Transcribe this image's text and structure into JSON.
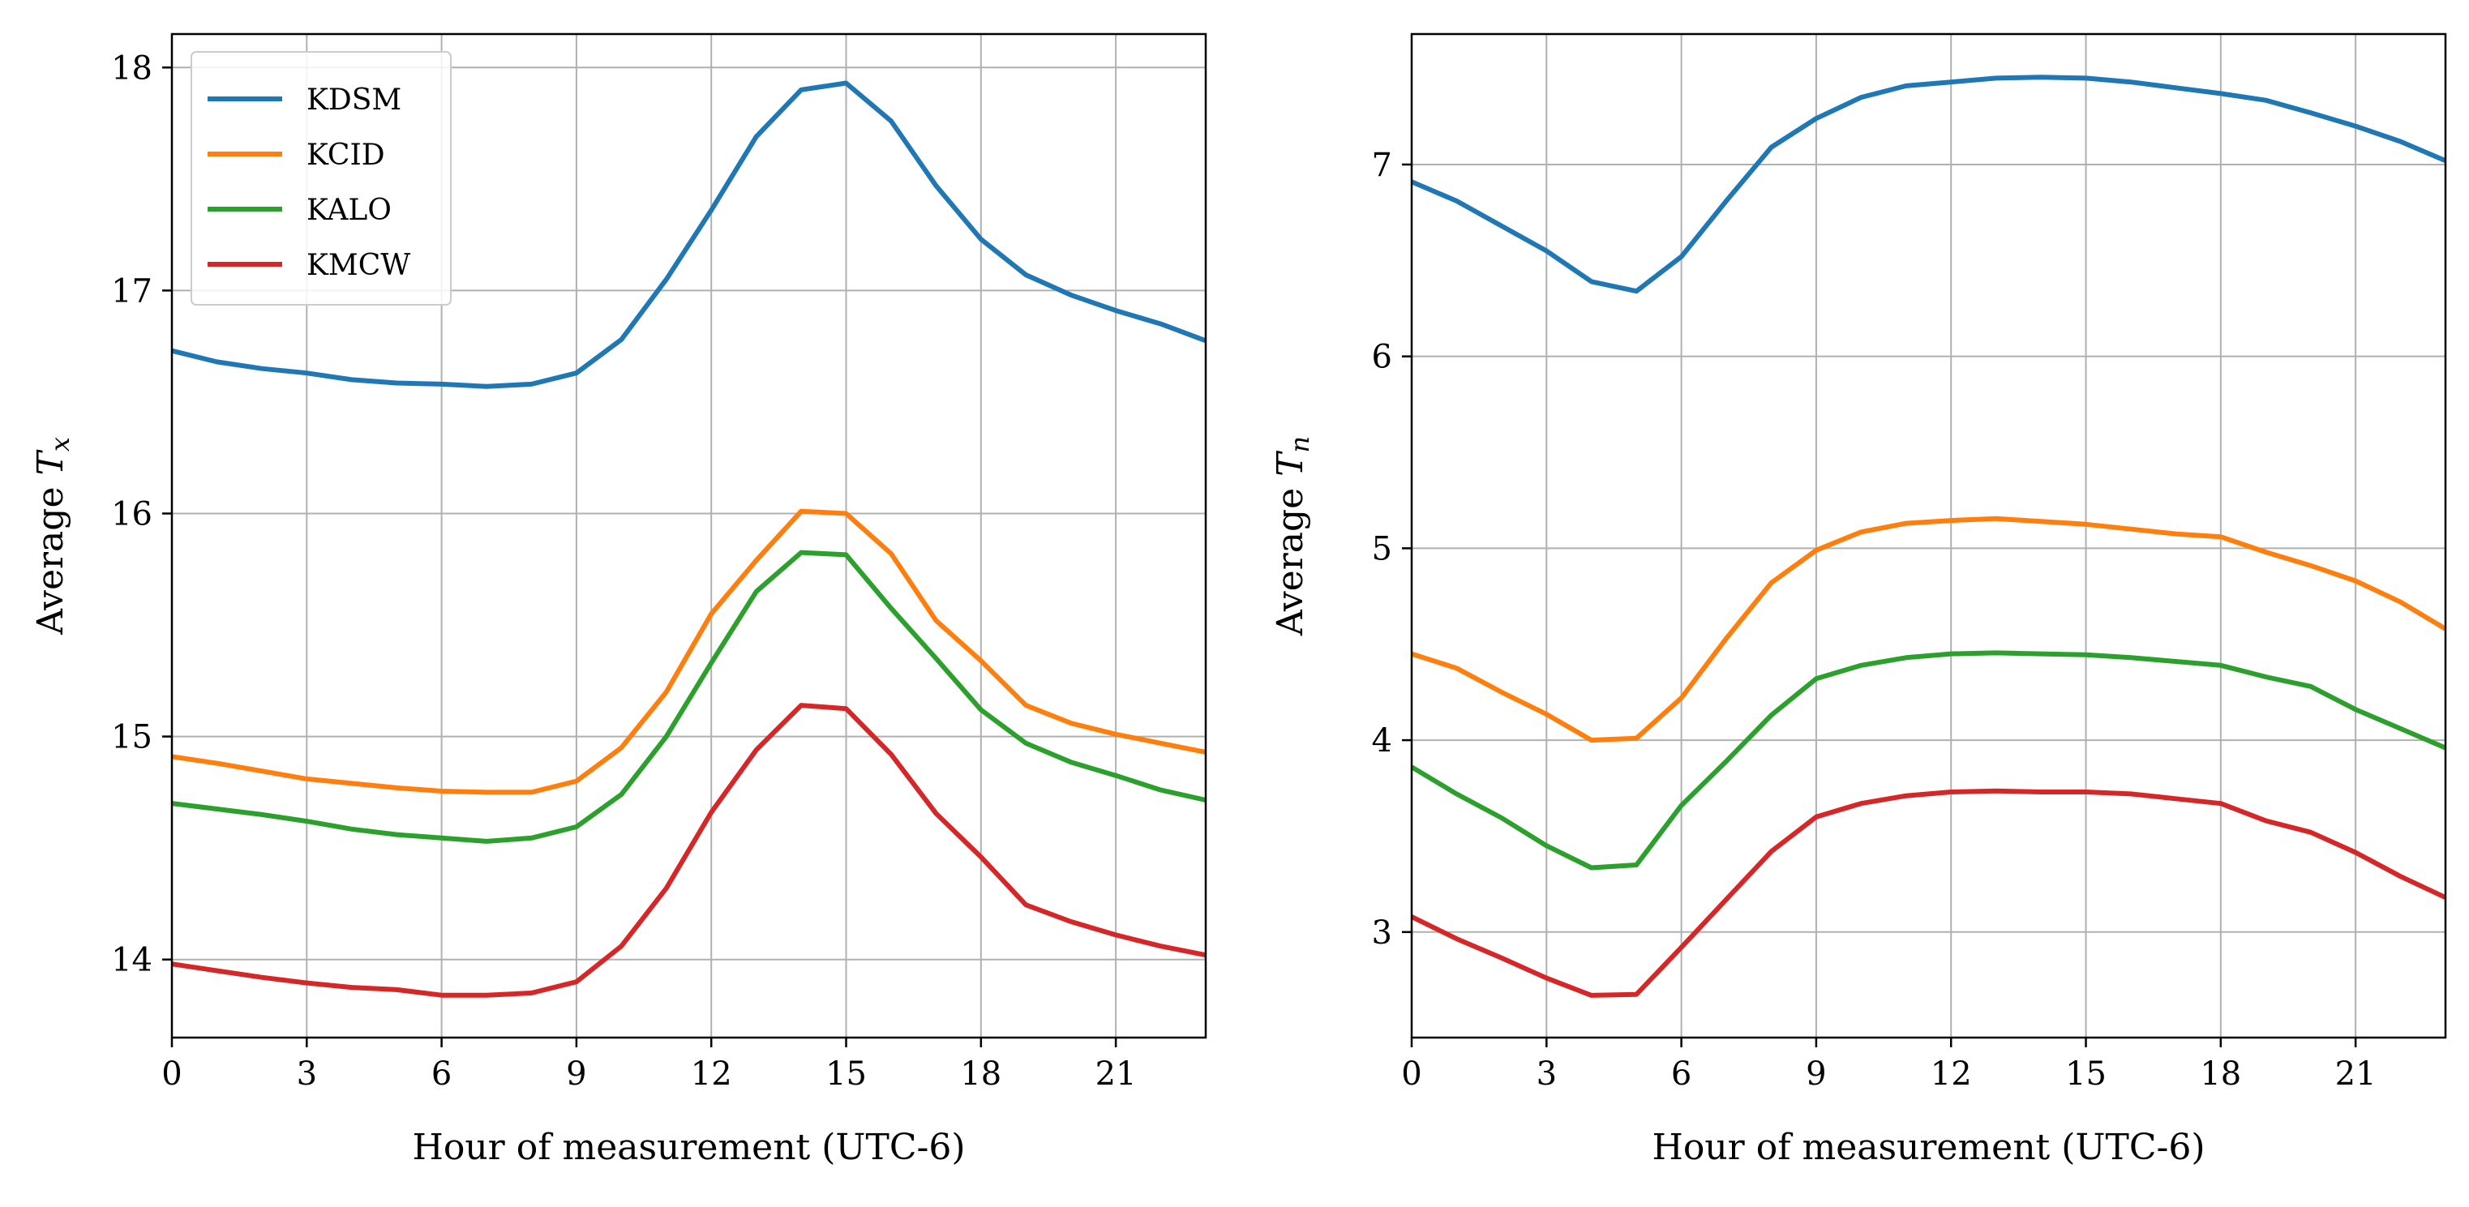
{
  "chart_data": [
    {
      "type": "line",
      "title": "",
      "xlabel": "Hour of measurement (UTC-6)",
      "ylabel": "Average T",
      "ylabel_subscript": "x",
      "xlim": [
        0,
        23
      ],
      "ylim": [
        13.65,
        18.15
      ],
      "x_ticks": [
        0,
        3,
        6,
        9,
        12,
        15,
        18,
        21
      ],
      "y_ticks": [
        14,
        15,
        16,
        17,
        18
      ],
      "grid": true,
      "legend": "top-left",
      "x": [
        0,
        1,
        2,
        3,
        4,
        5,
        6,
        7,
        8,
        9,
        10,
        11,
        12,
        13,
        14,
        15,
        16,
        17,
        18,
        19,
        20,
        21,
        22,
        23
      ],
      "series": [
        {
          "name": "KDSM",
          "color": "#1f77b4",
          "values": [
            16.73,
            16.68,
            16.65,
            16.63,
            16.6,
            16.585,
            16.58,
            16.57,
            16.58,
            16.63,
            16.78,
            17.05,
            17.36,
            17.69,
            17.9,
            17.93,
            17.76,
            17.47,
            17.23,
            17.07,
            16.98,
            16.91,
            16.85,
            16.775
          ]
        },
        {
          "name": "KCID",
          "color": "#ff7f0e",
          "values": [
            14.91,
            14.88,
            14.845,
            14.81,
            14.79,
            14.77,
            14.755,
            14.75,
            14.75,
            14.8,
            14.95,
            15.2,
            15.55,
            15.79,
            16.01,
            16.0,
            15.82,
            15.52,
            15.34,
            15.14,
            15.06,
            15.01,
            14.97,
            14.93
          ]
        },
        {
          "name": "KALO",
          "color": "#2ca02c",
          "values": [
            14.7,
            14.675,
            14.65,
            14.62,
            14.585,
            14.56,
            14.545,
            14.53,
            14.545,
            14.595,
            14.74,
            15.0,
            15.33,
            15.65,
            15.825,
            15.815,
            15.575,
            15.35,
            15.12,
            14.97,
            14.885,
            14.825,
            14.76,
            14.715
          ]
        },
        {
          "name": "KMCW",
          "color": "#d62728",
          "values": [
            13.98,
            13.95,
            13.92,
            13.895,
            13.875,
            13.865,
            13.84,
            13.84,
            13.85,
            13.9,
            14.06,
            14.32,
            14.66,
            14.94,
            15.14,
            15.125,
            14.92,
            14.655,
            14.46,
            14.245,
            14.17,
            14.11,
            14.06,
            14.02
          ]
        }
      ]
    },
    {
      "type": "line",
      "title": "",
      "xlabel": "Hour of measurement (UTC-6)",
      "ylabel": "Average T",
      "ylabel_subscript": "n",
      "xlim": [
        0,
        23
      ],
      "ylim": [
        2.45,
        7.68
      ],
      "x_ticks": [
        0,
        3,
        6,
        9,
        12,
        15,
        18,
        21
      ],
      "y_ticks": [
        3,
        4,
        5,
        6,
        7
      ],
      "grid": true,
      "legend": "none",
      "x": [
        0,
        1,
        2,
        3,
        4,
        5,
        6,
        7,
        8,
        9,
        10,
        11,
        12,
        13,
        14,
        15,
        16,
        17,
        18,
        19,
        20,
        21,
        22,
        23
      ],
      "series": [
        {
          "name": "KDSM",
          "color": "#1f77b4",
          "values": [
            6.91,
            6.81,
            6.68,
            6.55,
            6.39,
            6.34,
            6.52,
            6.81,
            7.09,
            7.24,
            7.35,
            7.41,
            7.43,
            7.45,
            7.455,
            7.45,
            7.43,
            7.4,
            7.37,
            7.335,
            7.27,
            7.2,
            7.12,
            7.02
          ]
        },
        {
          "name": "KCID",
          "color": "#ff7f0e",
          "values": [
            4.45,
            4.375,
            4.25,
            4.135,
            4.0,
            4.01,
            4.22,
            4.53,
            4.82,
            4.99,
            5.085,
            5.13,
            5.145,
            5.155,
            5.14,
            5.125,
            5.1,
            5.075,
            5.06,
            4.98,
            4.91,
            4.83,
            4.72,
            4.58
          ]
        },
        {
          "name": "KALO",
          "color": "#2ca02c",
          "values": [
            3.86,
            3.72,
            3.595,
            3.45,
            3.335,
            3.35,
            3.66,
            3.89,
            4.13,
            4.32,
            4.39,
            4.43,
            4.45,
            4.455,
            4.45,
            4.445,
            4.43,
            4.41,
            4.39,
            4.33,
            4.28,
            4.16,
            4.06,
            3.96
          ]
        },
        {
          "name": "KMCW",
          "color": "#d62728",
          "values": [
            3.08,
            2.965,
            2.865,
            2.76,
            2.67,
            2.675,
            2.92,
            3.17,
            3.42,
            3.6,
            3.67,
            3.71,
            3.73,
            3.735,
            3.73,
            3.73,
            3.72,
            3.695,
            3.67,
            3.58,
            3.52,
            3.415,
            3.29,
            3.18
          ]
        }
      ]
    }
  ]
}
